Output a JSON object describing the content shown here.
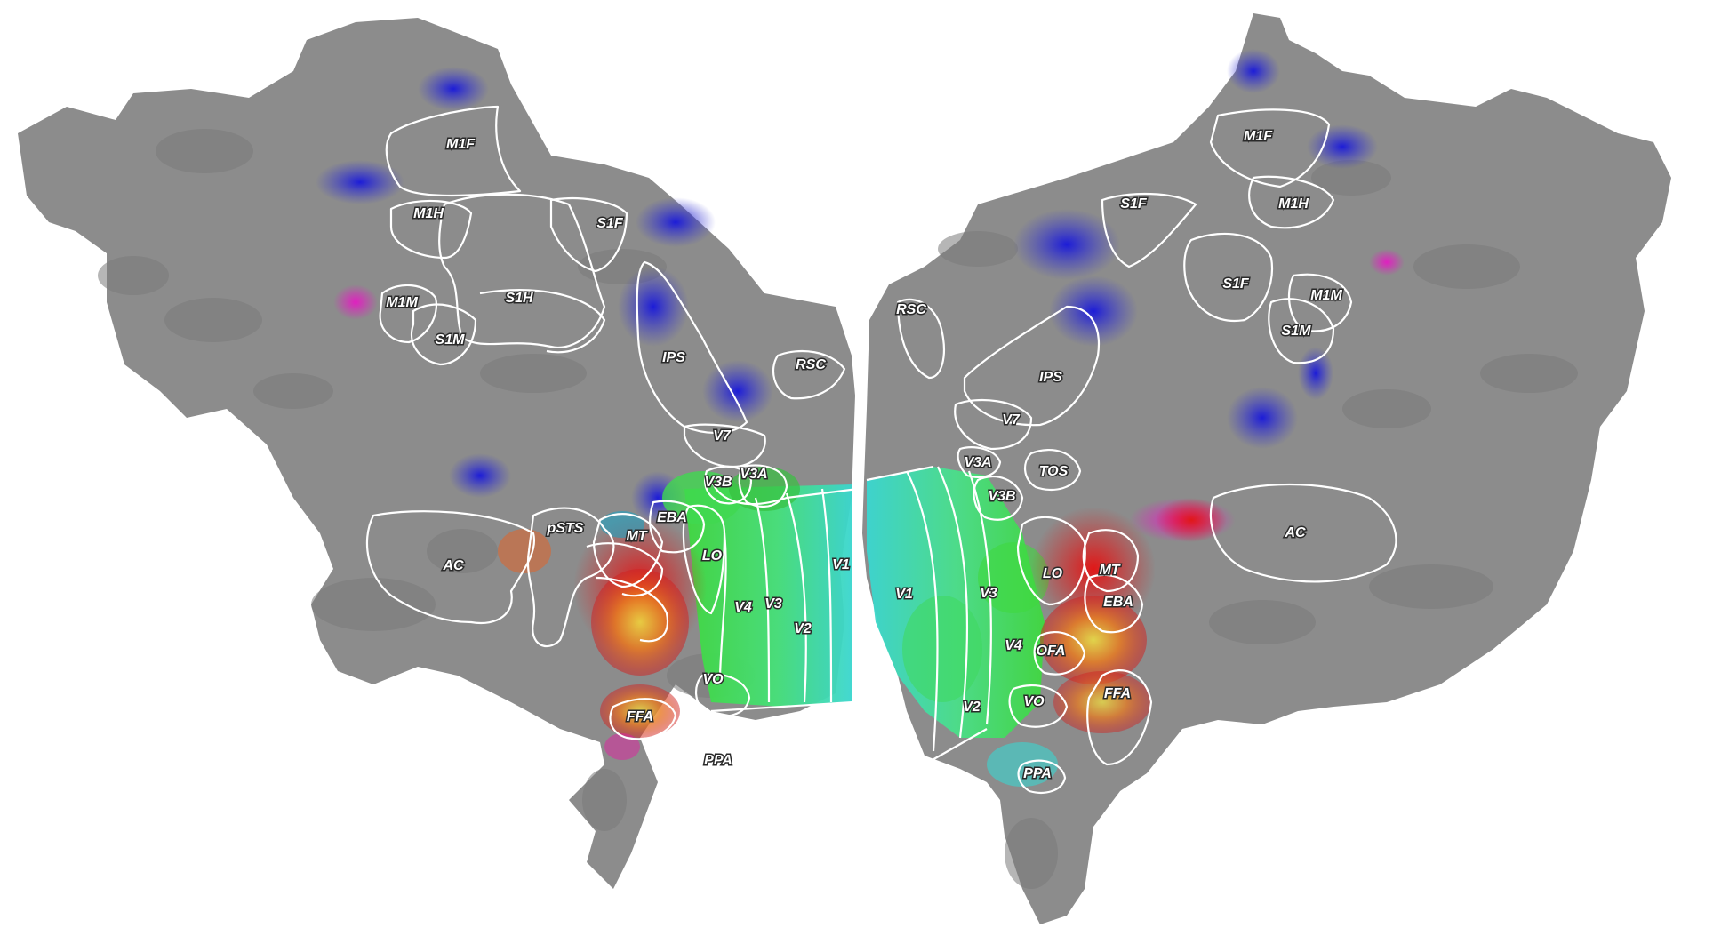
{
  "colors": {
    "cortex_gray": "#8c8c8c",
    "sulcus_gray": "#777777",
    "outline": "#ffffff",
    "early_visual_cyan": "#3ad6d0",
    "early_visual_green": "#3fd83f",
    "motor_blue": "#2424d8",
    "face_red": "#e02020",
    "face_yellow": "#e8d020"
  },
  "left_hemisphere": {
    "labels": {
      "m1f": "M1F",
      "m1h": "M1H",
      "s1f": "S1F",
      "m1m": "M1M",
      "s1h": "S1H",
      "s1m": "S1M",
      "ips": "IPS",
      "rsc": "RSC",
      "v7": "V7",
      "v3b": "V3B",
      "v3a": "V3A",
      "eba": "EBA",
      "psts": "pSTS",
      "mt": "MT",
      "lo": "LO",
      "v1": "V1",
      "ac": "AC",
      "v4": "V4",
      "v3": "V3",
      "v2": "V2",
      "vo": "VO",
      "ffa": "FFA",
      "ppa": "PPA"
    }
  },
  "right_hemisphere": {
    "labels": {
      "m1f": "M1F",
      "s1f_top": "S1F",
      "m1h": "M1H",
      "rsc": "RSC",
      "s1f": "S1F",
      "m1m": "M1M",
      "s1m": "S1M",
      "ips": "IPS",
      "v7": "V7",
      "v3a": "V3A",
      "tos": "TOS",
      "v3b": "V3B",
      "ac": "AC",
      "lo": "LO",
      "mt": "MT",
      "v1": "V1",
      "v3": "V3",
      "eba": "EBA",
      "v4": "V4",
      "ofa": "OFA",
      "ffa": "FFA",
      "v2": "V2",
      "vo": "VO",
      "ppa": "PPA"
    }
  }
}
